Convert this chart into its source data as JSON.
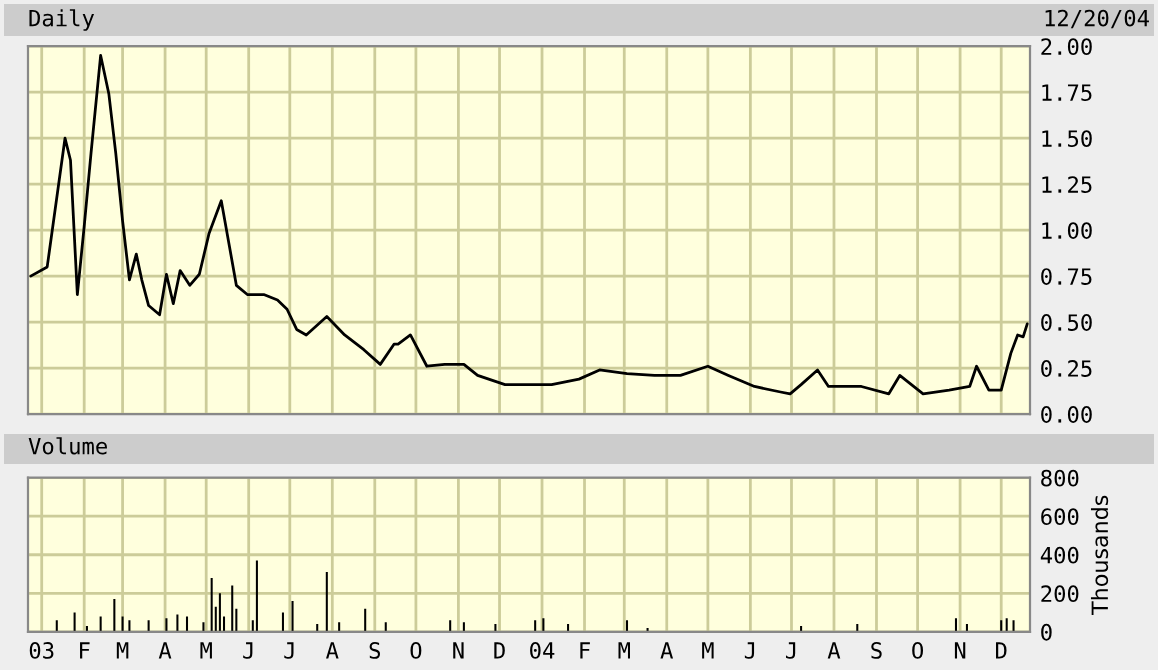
{
  "chart_data": [
    {
      "type": "line",
      "title": "Daily",
      "annotations": [
        "12/20/04"
      ],
      "xlim": [
        "2002-12-22",
        "2004-12-22"
      ],
      "ylim": [
        0,
        2
      ],
      "yticks": [
        {
          "value": 0,
          "label": "0.00"
        },
        {
          "value": 0.25,
          "label": "0.25"
        },
        {
          "value": 0.5,
          "label": "0.50"
        },
        {
          "value": 0.75,
          "label": "0.75"
        },
        {
          "value": 1,
          "label": "1.00"
        },
        {
          "value": 1.25,
          "label": "1.25"
        },
        {
          "value": 1.5,
          "label": "1.50"
        },
        {
          "value": 1.75,
          "label": "1.75"
        },
        {
          "value": 2,
          "label": "2.00"
        }
      ],
      "xticks": [
        {
          "value": "2003-01-01",
          "label": null
        },
        {
          "value": "2003-02-01",
          "label": null
        },
        {
          "value": "2003-03-01",
          "label": null
        },
        {
          "value": "2003-04-01",
          "label": null
        },
        {
          "value": "2003-05-01",
          "label": null
        },
        {
          "value": "2003-06-01",
          "label": null
        },
        {
          "value": "2003-07-01",
          "label": null
        },
        {
          "value": "2003-08-01",
          "label": null
        },
        {
          "value": "2003-09-01",
          "label": null
        },
        {
          "value": "2003-10-01",
          "label": null
        },
        {
          "value": "2003-11-01",
          "label": null
        },
        {
          "value": "2003-12-01",
          "label": null
        },
        {
          "value": "2004-01-01",
          "label": null
        },
        {
          "value": "2004-02-01",
          "label": null
        },
        {
          "value": "2004-03-01",
          "label": null
        },
        {
          "value": "2004-04-01",
          "label": null
        },
        {
          "value": "2004-05-01",
          "label": null
        },
        {
          "value": "2004-06-01",
          "label": null
        },
        {
          "value": "2004-07-01",
          "label": null
        },
        {
          "value": "2004-08-01",
          "label": null
        },
        {
          "value": "2004-09-01",
          "label": null
        },
        {
          "value": "2004-10-01",
          "label": null
        },
        {
          "value": "2004-11-01",
          "label": null
        },
        {
          "value": "2004-12-01",
          "label": null
        }
      ],
      "tick_labels": "y",
      "grid": true,
      "series": [
        {
          "color": "#000000",
          "x": [
            "2002-12-24",
            "2003-01-05",
            "2003-01-18",
            "2003-01-22",
            "2003-01-27",
            "2003-02-01",
            "2003-02-06",
            "2003-02-13",
            "2003-02-19",
            "2003-02-24",
            "2003-03-01",
            "2003-03-06",
            "2003-03-11",
            "2003-03-15",
            "2003-03-20",
            "2003-03-28",
            "2003-04-02",
            "2003-04-07",
            "2003-04-12",
            "2003-04-19",
            "2003-04-26",
            "2003-05-03",
            "2003-05-12",
            "2003-05-18",
            "2003-05-23",
            "2003-05-31",
            "2003-06-12",
            "2003-06-22",
            "2003-06-29",
            "2003-07-06",
            "2003-07-13",
            "2003-07-28",
            "2003-08-10",
            "2003-08-24",
            "2003-09-05",
            "2003-09-15",
            "2003-09-18",
            "2003-09-27",
            "2003-10-09",
            "2003-10-22",
            "2003-11-05",
            "2003-11-15",
            "2003-12-05",
            "2003-12-20",
            "2004-01-08",
            "2004-01-28",
            "2004-02-12",
            "2004-03-03",
            "2004-03-23",
            "2004-04-11",
            "2004-05-01",
            "2004-05-16",
            "2004-06-04",
            "2004-06-23",
            "2004-06-30",
            "2004-07-08",
            "2004-07-20",
            "2004-07-28",
            "2004-08-21",
            "2004-09-10",
            "2004-09-18",
            "2004-10-05",
            "2004-10-24",
            "2004-11-08",
            "2004-11-13",
            "2004-11-22",
            "2004-12-01",
            "2004-12-08",
            "2004-12-13",
            "2004-12-17",
            "2004-12-20"
          ],
          "values": [
            0.75,
            0.8,
            1.5,
            1.38,
            0.65,
            1.02,
            1.42,
            1.95,
            1.74,
            1.42,
            1.05,
            0.73,
            0.87,
            0.73,
            0.59,
            0.54,
            0.76,
            0.6,
            0.78,
            0.7,
            0.76,
            0.98,
            1.16,
            0.91,
            0.7,
            0.65,
            0.65,
            0.62,
            0.57,
            0.46,
            0.43,
            0.53,
            0.43,
            0.35,
            0.27,
            0.38,
            0.38,
            0.43,
            0.26,
            0.27,
            0.27,
            0.21,
            0.16,
            0.16,
            0.16,
            0.19,
            0.24,
            0.22,
            0.21,
            0.21,
            0.26,
            0.21,
            0.15,
            0.12,
            0.11,
            0.16,
            0.24,
            0.15,
            0.15,
            0.11,
            0.21,
            0.11,
            0.13,
            0.15,
            0.26,
            0.13,
            0.13,
            0.33,
            0.43,
            0.42,
            0.49
          ]
        }
      ]
    },
    {
      "type": "bar",
      "title": "Volume",
      "ylabel": "Thousands",
      "xlim": [
        "2002-12-22",
        "2004-12-22"
      ],
      "ylim": [
        0,
        800
      ],
      "yticks": [
        0,
        200,
        400,
        600,
        800
      ],
      "xticks": [
        {
          "value": "2003-01-01",
          "label": "03"
        },
        {
          "value": "2003-02-01",
          "label": "F"
        },
        {
          "value": "2003-03-01",
          "label": "M"
        },
        {
          "value": "2003-04-01",
          "label": "A"
        },
        {
          "value": "2003-05-01",
          "label": "M"
        },
        {
          "value": "2003-06-01",
          "label": "J"
        },
        {
          "value": "2003-07-01",
          "label": "J"
        },
        {
          "value": "2003-08-01",
          "label": "A"
        },
        {
          "value": "2003-09-01",
          "label": "S"
        },
        {
          "value": "2003-10-01",
          "label": "O"
        },
        {
          "value": "2003-11-01",
          "label": "N"
        },
        {
          "value": "2003-12-01",
          "label": "D"
        },
        {
          "value": "2004-01-01",
          "label": "04"
        },
        {
          "value": "2004-02-01",
          "label": "F"
        },
        {
          "value": "2004-03-01",
          "label": "M"
        },
        {
          "value": "2004-04-01",
          "label": "A"
        },
        {
          "value": "2004-05-01",
          "label": "M"
        },
        {
          "value": "2004-06-01",
          "label": "J"
        },
        {
          "value": "2004-07-01",
          "label": "J"
        },
        {
          "value": "2004-08-01",
          "label": "A"
        },
        {
          "value": "2004-09-01",
          "label": "S"
        },
        {
          "value": "2004-10-01",
          "label": "O"
        },
        {
          "value": "2004-11-01",
          "label": "N"
        },
        {
          "value": "2004-12-01",
          "label": "D"
        }
      ],
      "grid": true,
      "series": [
        {
          "color": "#000000",
          "x": [
            "2003-01-12",
            "2003-01-25",
            "2003-02-03",
            "2003-02-13",
            "2003-02-23",
            "2003-03-01",
            "2003-03-06",
            "2003-03-20",
            "2003-04-02",
            "2003-04-10",
            "2003-04-17",
            "2003-04-29",
            "2003-05-05",
            "2003-05-08",
            "2003-05-11",
            "2003-05-14",
            "2003-05-20",
            "2003-05-23",
            "2003-06-04",
            "2003-06-07",
            "2003-06-26",
            "2003-07-03",
            "2003-07-21",
            "2003-07-28",
            "2003-08-06",
            "2003-08-25",
            "2003-09-09",
            "2003-10-26",
            "2003-11-05",
            "2003-11-28",
            "2003-12-27",
            "2004-01-02",
            "2004-01-20",
            "2004-03-03",
            "2004-03-18",
            "2004-07-08",
            "2004-08-18",
            "2004-10-29",
            "2004-11-06",
            "2004-12-01",
            "2004-12-05",
            "2004-12-10"
          ],
          "values": [
            60,
            100,
            30,
            80,
            170,
            80,
            60,
            60,
            70,
            90,
            80,
            50,
            280,
            130,
            200,
            80,
            240,
            120,
            60,
            370,
            100,
            160,
            40,
            310,
            50,
            120,
            50,
            60,
            50,
            40,
            60,
            70,
            40,
            60,
            20,
            30,
            40,
            70,
            40,
            60,
            70,
            60
          ]
        }
      ]
    }
  ]
}
